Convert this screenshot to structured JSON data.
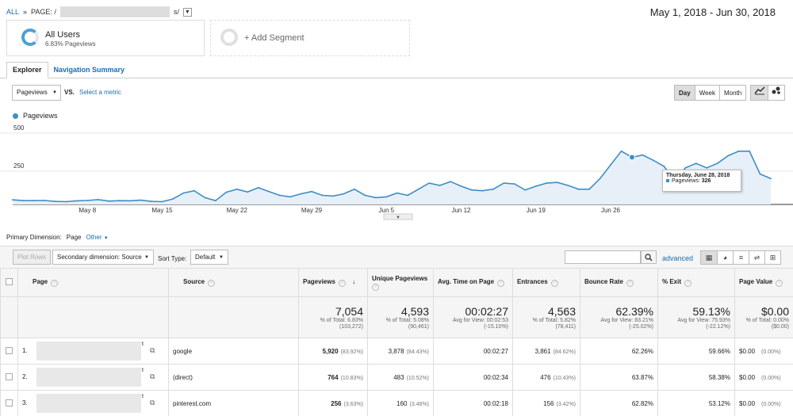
{
  "breadcrumb": {
    "all": "ALL",
    "sep": "»",
    "page_prefix": "PAGE: /",
    "page_suffix": "s/"
  },
  "date_range": "May 1, 2018 - Jun 30, 2018",
  "segments": [
    {
      "title": "All Users",
      "subtitle": "6.83% Pageviews"
    },
    {
      "title": "+ Add Segment"
    }
  ],
  "tabs": [
    "Explorer",
    "Navigation Summary"
  ],
  "metric_select": "Pageviews",
  "vs_label": "VS.",
  "select_metric": "Select a metric",
  "period_buttons": [
    "Day",
    "Week",
    "Month"
  ],
  "chart_data": {
    "type": "area",
    "series": [
      {
        "name": "Pageviews",
        "color": "#3e8ec4"
      }
    ],
    "y_ticks": [
      "500",
      "250"
    ],
    "ylim": [
      0,
      500
    ],
    "x_ticks": [
      "May 8",
      "May 15",
      "May 22",
      "May 29",
      "Jun 5",
      "Jun 12",
      "Jun 19",
      "Jun 26"
    ],
    "x_start": "May 1, 2018",
    "values": [
      30,
      25,
      25,
      26,
      20,
      18,
      24,
      26,
      32,
      22,
      25,
      24,
      28,
      20,
      18,
      36,
      75,
      90,
      45,
      25,
      80,
      100,
      82,
      110,
      85,
      60,
      50,
      70,
      85,
      60,
      55,
      70,
      100,
      60,
      45,
      50,
      75,
      60,
      100,
      140,
      125,
      150,
      120,
      95,
      90,
      100,
      140,
      135,
      95,
      120,
      140,
      145,
      125,
      100,
      100,
      170,
      260,
      350,
      310,
      325,
      290,
      250,
      160,
      240,
      270,
      240,
      270,
      320,
      350,
      350,
      200,
      170
    ],
    "tooltip": {
      "date": "Thursday, June 28, 2018",
      "label": "Pageviews",
      "value": "326"
    }
  },
  "primary_dimension": {
    "label": "Primary Dimension:",
    "current": "Page",
    "other": "Other"
  },
  "toolbar": {
    "plot_rows": "Plot Rows",
    "secondary_dimension": "Secondary dimension: Source",
    "sort_type_label": "Sort Type:",
    "sort_type": "Default",
    "advanced": "advanced"
  },
  "table": {
    "headers": {
      "page": "Page",
      "source": "Source",
      "pageviews": "Pageviews",
      "unique_pageviews": "Unique Pageviews",
      "avg_time": "Avg. Time on Page",
      "entrances": "Entrances",
      "bounce_rate": "Bounce Rate",
      "exit": "% Exit",
      "page_value": "Page Value"
    },
    "totals": {
      "pageviews": {
        "value": "7,054",
        "line1": "% of Total: 6.83%",
        "line2": "(103,272)"
      },
      "unique_pageviews": {
        "value": "4,593",
        "line1": "% of Total: 5.08%",
        "line2": "(90,461)"
      },
      "avg_time": {
        "value": "00:02:27",
        "line1": "Avg for View: 00:02:53",
        "line2": "(-15.10%)"
      },
      "entrances": {
        "value": "4,563",
        "line1": "% of Total: 5.82%",
        "line2": "(78,411)"
      },
      "bounce_rate": {
        "value": "62.39%",
        "line1": "Avg for View: 83.21%",
        "line2": "(-25.02%)"
      },
      "exit": {
        "value": "59.13%",
        "line1": "Avg for View: 75.93%",
        "line2": "(-22.12%)"
      },
      "page_value": {
        "value": "$0.00",
        "line1": "% of Total: 0.00%",
        "line2": "($0.00)"
      }
    },
    "rows": [
      {
        "idx": "1.",
        "page_suffix": "t",
        "source": "google",
        "pageviews": "5,920",
        "pageviews_pct": "(83.92%)",
        "unique": "3,878",
        "unique_pct": "(84.43%)",
        "avg_time": "00:02:27",
        "entrances": "3,861",
        "entrances_pct": "(84.62%)",
        "bounce": "62.26%",
        "exit": "59.66%",
        "value": "$0.00",
        "value_pct": "(0.00%)"
      },
      {
        "idx": "2.",
        "page_suffix": "t",
        "source": "(direct)",
        "pageviews": "764",
        "pageviews_pct": "(10.83%)",
        "unique": "483",
        "unique_pct": "(10.52%)",
        "avg_time": "00:02:34",
        "entrances": "476",
        "entrances_pct": "(10.43%)",
        "bounce": "63.87%",
        "exit": "58.38%",
        "value": "$0.00",
        "value_pct": "(0.00%)"
      },
      {
        "idx": "3.",
        "page_suffix": "t",
        "source": "pinterest.com",
        "pageviews": "256",
        "pageviews_pct": "(3.63%)",
        "unique": "160",
        "unique_pct": "(3.48%)",
        "avg_time": "00:02:18",
        "entrances": "156",
        "entrances_pct": "(3.42%)",
        "bounce": "62.82%",
        "exit": "53.12%",
        "value": "$0.00",
        "value_pct": "(0.00%)"
      }
    ]
  }
}
